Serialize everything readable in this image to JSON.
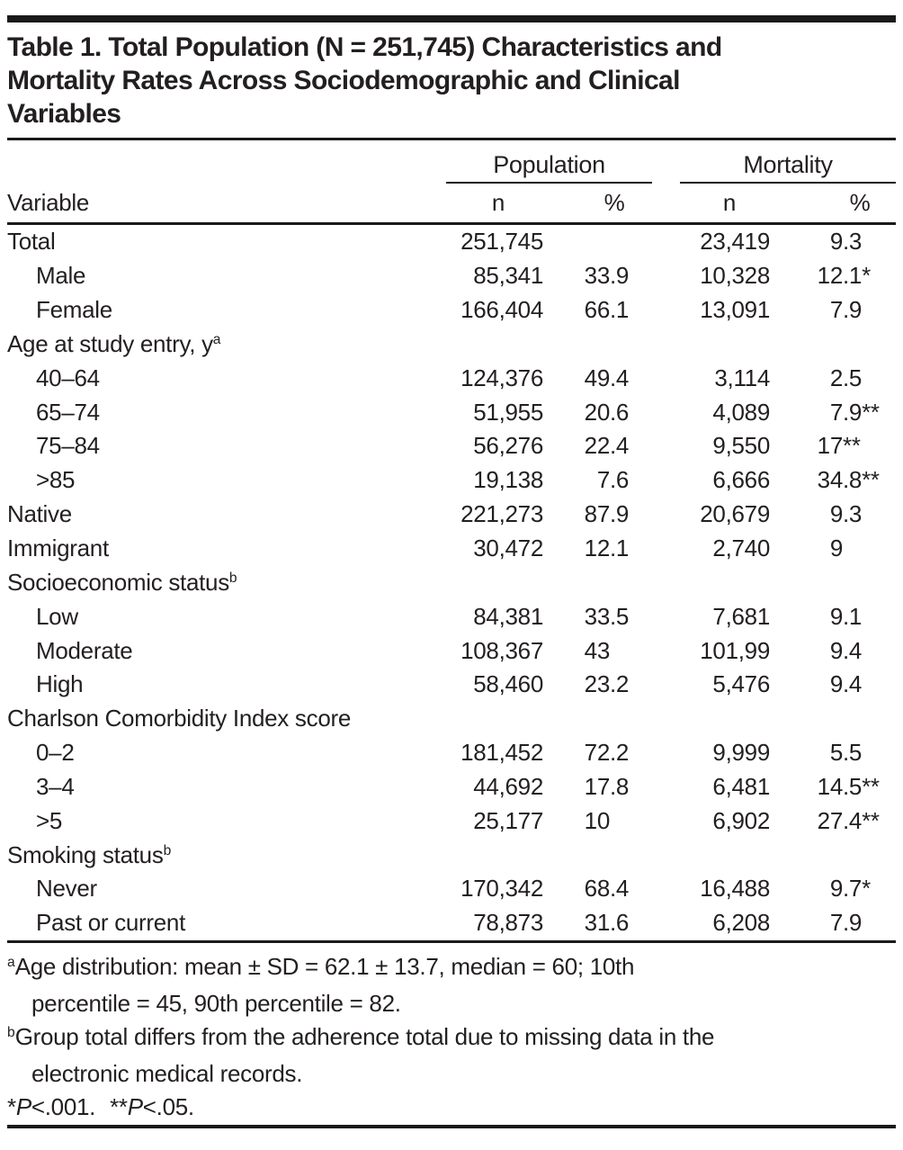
{
  "colors": {
    "text": "#231f20",
    "rule": "#1a1a1a",
    "background": "#ffffff"
  },
  "title_lines": [
    "Table 1. Total Population (N = 251,745) Characteristics and",
    "Mortality Rates Across Sociodemographic and Clinical",
    "Variables"
  ],
  "table": {
    "group_headers": [
      "Population",
      "Mortality"
    ],
    "variable_header": "Variable",
    "sub_headers": [
      "n",
      "%",
      "n",
      "%"
    ],
    "rows": [
      {
        "label": "Total",
        "indent": 0,
        "cells": [
          "251,745",
          "",
          "23,419",
          "9.3"
        ]
      },
      {
        "label": "Male",
        "indent": 1,
        "cells": [
          "85,341",
          "33.9",
          "10,328",
          "12.1*"
        ]
      },
      {
        "label": "Female",
        "indent": 1,
        "cells": [
          "166,404",
          "66.1",
          "13,091",
          "7.9"
        ]
      },
      {
        "label": "Age at study entry, y",
        "sup": "a",
        "indent": 0,
        "cells": [
          "",
          "",
          "",
          ""
        ]
      },
      {
        "label": "40–64",
        "indent": 1,
        "cells": [
          "124,376",
          "49.4",
          "3,114",
          "2.5"
        ]
      },
      {
        "label": "65–74",
        "indent": 1,
        "cells": [
          "51,955",
          "20.6",
          "4,089",
          "7.9**"
        ]
      },
      {
        "label": "75–84",
        "indent": 1,
        "cells": [
          "56,276",
          "22.4",
          "9,550",
          "17**"
        ]
      },
      {
        "label": ">85",
        "indent": 1,
        "cells": [
          "19,138",
          "7.6",
          "6,666",
          "34.8**"
        ]
      },
      {
        "label": "Native",
        "indent": 0,
        "cells": [
          "221,273",
          "87.9",
          "20,679",
          "9.3"
        ]
      },
      {
        "label": "Immigrant",
        "indent": 0,
        "cells": [
          "30,472",
          "12.1",
          "2,740",
          "9"
        ]
      },
      {
        "label": "Socioeconomic status",
        "sup": "b",
        "indent": 0,
        "cells": [
          "",
          "",
          "",
          ""
        ]
      },
      {
        "label": "Low",
        "indent": 1,
        "cells": [
          "84,381",
          "33.5",
          "7,681",
          "9.1"
        ]
      },
      {
        "label": "Moderate",
        "indent": 1,
        "cells": [
          "108,367",
          "43",
          "101,99",
          "9.4"
        ]
      },
      {
        "label": "High",
        "indent": 1,
        "cells": [
          "58,460",
          "23.2",
          "5,476",
          "9.4"
        ]
      },
      {
        "label": "Charlson Comorbidity Index score",
        "indent": 0,
        "cells": [
          "",
          "",
          "",
          ""
        ]
      },
      {
        "label": "0–2",
        "indent": 1,
        "cells": [
          "181,452",
          "72.2",
          "9,999",
          "5.5"
        ]
      },
      {
        "label": "3–4",
        "indent": 1,
        "cells": [
          "44,692",
          "17.8",
          "6,481",
          "14.5**"
        ]
      },
      {
        "label": ">5",
        "indent": 1,
        "cells": [
          "25,177",
          "10",
          "6,902",
          "27.4**"
        ]
      },
      {
        "label": "Smoking status",
        "sup": "b",
        "indent": 0,
        "cells": [
          "",
          "",
          "",
          ""
        ]
      },
      {
        "label": "Never",
        "indent": 1,
        "cells": [
          "170,342",
          "68.4",
          "16,488",
          "9.7*"
        ]
      },
      {
        "label": "Past or current",
        "indent": 1,
        "cells": [
          "78,873",
          "31.6",
          "6,208",
          "7.9"
        ]
      }
    ]
  },
  "footnotes_data": [
    {
      "sup": "a",
      "lines": [
        "Age distribution: mean ± SD = 62.1 ± 13.7, median = 60; 10th",
        "percentile = 45, 90th percentile = 82."
      ]
    },
    {
      "sup": "b",
      "lines": [
        "Group total differs from the adherence total due to missing data in the",
        "electronic medical records."
      ]
    }
  ],
  "pnote": {
    "star1": "*",
    "p1": "P",
    "cmp1": "<.001.",
    "star2": "**",
    "p2": "P",
    "cmp2": "<.05."
  }
}
